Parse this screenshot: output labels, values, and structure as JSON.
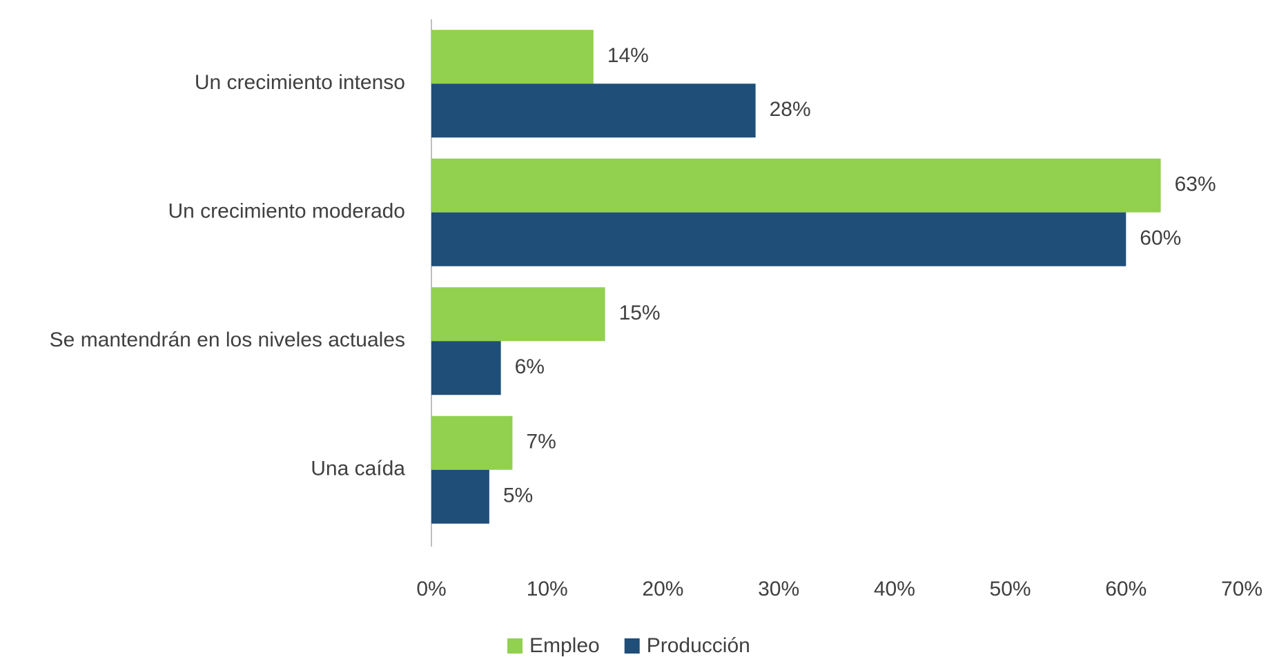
{
  "chart_data": {
    "type": "bar",
    "orientation": "horizontal",
    "categories": [
      "Un crecimiento intenso",
      "Un crecimiento moderado",
      "Se mantendrán en los niveles actuales",
      "Una caída"
    ],
    "series": [
      {
        "name": "Empleo",
        "color": "#92d050",
        "values": [
          14,
          63,
          15,
          7
        ],
        "value_labels": [
          "14%",
          "63%",
          "15%",
          "7%"
        ]
      },
      {
        "name": "Producción",
        "color": "#1f4e79",
        "values": [
          28,
          60,
          6,
          5
        ],
        "value_labels": [
          "28%",
          "60%",
          "6%",
          "5%"
        ]
      }
    ],
    "xlim": [
      0,
      70
    ],
    "xticks": [
      {
        "value": 0,
        "label": "0%"
      },
      {
        "value": 10,
        "label": "10%"
      },
      {
        "value": 20,
        "label": "20%"
      },
      {
        "value": 30,
        "label": "30%"
      },
      {
        "value": 40,
        "label": "40%"
      },
      {
        "value": 50,
        "label": "50%"
      },
      {
        "value": 60,
        "label": "60%"
      },
      {
        "value": 70,
        "label": "70%"
      }
    ],
    "legend": "bottom"
  }
}
